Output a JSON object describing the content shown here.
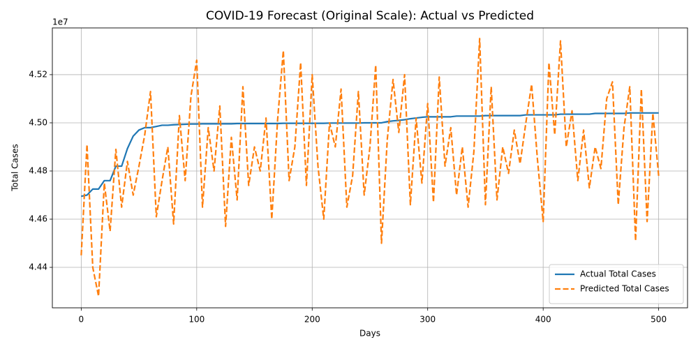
{
  "chart_data": {
    "type": "line",
    "title": "COVID-19 Forecast (Original Scale): Actual vs Predicted",
    "x_label": "Days",
    "y_label": "Total Cases",
    "y_offset_label": "1e7",
    "x": [
      0,
      5,
      10,
      15,
      20,
      25,
      30,
      35,
      40,
      45,
      50,
      55,
      60,
      65,
      70,
      75,
      80,
      85,
      90,
      95,
      100,
      105,
      110,
      115,
      120,
      125,
      130,
      135,
      140,
      145,
      150,
      155,
      160,
      165,
      170,
      175,
      180,
      185,
      190,
      195,
      200,
      205,
      210,
      215,
      220,
      225,
      230,
      235,
      240,
      245,
      250,
      255,
      260,
      265,
      270,
      275,
      280,
      285,
      290,
      295,
      300,
      305,
      310,
      315,
      320,
      325,
      330,
      335,
      340,
      345,
      350,
      355,
      360,
      365,
      370,
      375,
      380,
      385,
      390,
      395,
      400,
      405,
      410,
      415,
      420,
      425,
      430,
      435,
      440,
      445,
      450,
      455,
      460,
      465,
      470,
      475,
      480,
      485,
      490,
      495,
      500
    ],
    "series": [
      {
        "name": "Actual Total Cases",
        "color": "#1f77b4",
        "dashed": false,
        "values": [
          4.4695,
          4.47,
          4.4725,
          4.4725,
          4.476,
          4.476,
          4.482,
          4.482,
          4.4893,
          4.4945,
          4.497,
          4.498,
          4.498,
          4.4985,
          4.499,
          4.499,
          4.4992,
          4.4993,
          4.4994,
          4.4995,
          4.4995,
          4.4996,
          4.4996,
          4.4996,
          4.4996,
          4.4996,
          4.4996,
          4.4997,
          4.4997,
          4.4997,
          4.4997,
          4.4997,
          4.4997,
          4.4997,
          4.4997,
          4.4998,
          4.4998,
          4.4998,
          4.4998,
          4.4998,
          4.4998,
          4.4998,
          4.4998,
          4.4999,
          4.4999,
          4.4999,
          4.4999,
          4.4999,
          4.4999,
          4.5,
          4.5,
          4.5,
          4.5,
          4.5005,
          4.5008,
          4.501,
          4.5013,
          4.5017,
          4.502,
          4.5023,
          4.5025,
          4.5025,
          4.5025,
          4.5025,
          4.5025,
          4.5028,
          4.5028,
          4.5028,
          4.5028,
          4.5028,
          4.503,
          4.503,
          4.503,
          4.503,
          4.503,
          4.503,
          4.503,
          4.5033,
          4.5033,
          4.5033,
          4.5033,
          4.5033,
          4.5033,
          4.5036,
          4.5036,
          4.5036,
          4.5036,
          4.5036,
          4.5036,
          4.5039,
          4.5039,
          4.5039,
          4.5039,
          4.5039,
          4.5039,
          4.5041,
          4.5041,
          4.5041,
          4.5041,
          4.5041,
          4.5041
        ]
      },
      {
        "name": "Predicted Total Cases",
        "color": "#ff7f0e",
        "dashed": true,
        "values": [
          4.445,
          4.491,
          4.44,
          4.428,
          4.475,
          4.455,
          4.489,
          4.465,
          4.484,
          4.47,
          4.482,
          4.495,
          4.513,
          4.461,
          4.476,
          4.49,
          4.458,
          4.503,
          4.476,
          4.511,
          4.526,
          4.465,
          4.498,
          4.48,
          4.507,
          4.457,
          4.494,
          4.468,
          4.515,
          4.474,
          4.49,
          4.48,
          4.502,
          4.46,
          4.501,
          4.53,
          4.476,
          4.49,
          4.525,
          4.474,
          4.52,
          4.482,
          4.46,
          4.5,
          4.49,
          4.514,
          4.465,
          4.478,
          4.513,
          4.47,
          4.49,
          4.524,
          4.45,
          4.493,
          4.518,
          4.496,
          4.52,
          4.466,
          4.502,
          4.475,
          4.508,
          4.467,
          4.519,
          4.482,
          4.498,
          4.47,
          4.49,
          4.465,
          4.488,
          4.535,
          4.466,
          4.515,
          4.468,
          4.49,
          4.479,
          4.497,
          4.483,
          4.5,
          4.516,
          4.485,
          4.459,
          4.525,
          4.495,
          4.534,
          4.49,
          4.505,
          4.476,
          4.497,
          4.473,
          4.49,
          4.481,
          4.51,
          4.517,
          4.466,
          4.498,
          4.515,
          4.451,
          4.514,
          4.459,
          4.504,
          4.478
        ]
      }
    ],
    "xlim": [
      -25,
      525
    ],
    "ylim": [
      4.4232,
      4.5394
    ],
    "xticks": [
      0,
      100,
      200,
      300,
      400,
      500
    ],
    "yticks": [
      4.44,
      4.46,
      4.48,
      {
        "value": 4.5,
        "label": "4.50"
      },
      4.52
    ],
    "grid": true,
    "legend": "lower right"
  }
}
